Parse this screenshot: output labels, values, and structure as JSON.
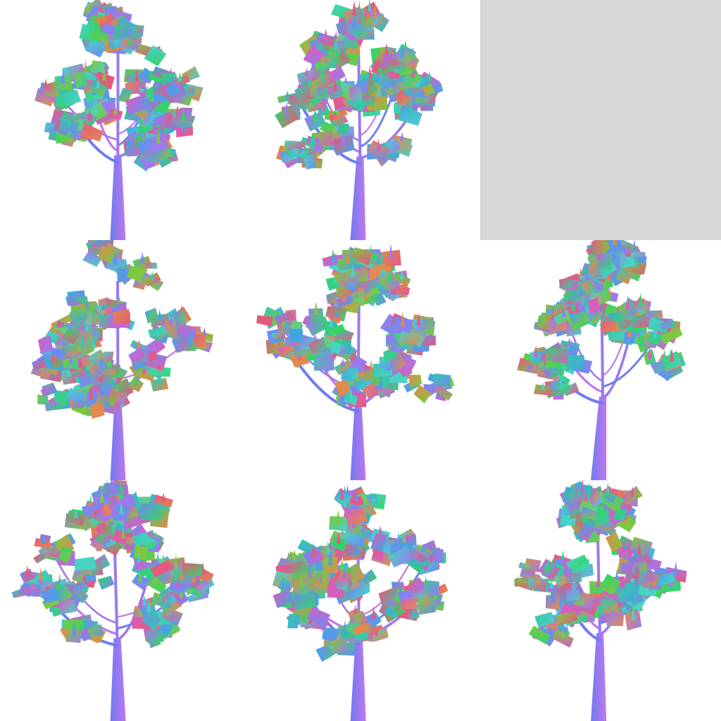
{
  "grid": {
    "rows": 3,
    "columns": 3,
    "background": "#ffffff",
    "empty_tile_color": "#d7d7d7"
  },
  "tiles": [
    {
      "kind": "tree",
      "seed": 11,
      "crown_spread": 1.0,
      "lean": 0.0
    },
    {
      "kind": "tree",
      "seed": 23,
      "crown_spread": 1.15,
      "lean": 0.05
    },
    {
      "kind": "empty"
    },
    {
      "kind": "tree",
      "seed": 37,
      "crown_spread": 1.2,
      "lean": 0.0
    },
    {
      "kind": "tree",
      "seed": 51,
      "crown_spread": 1.15,
      "lean": 0.0
    },
    {
      "kind": "tree",
      "seed": 67,
      "crown_spread": 1.05,
      "lean": 0.1
    },
    {
      "kind": "tree",
      "seed": 79,
      "crown_spread": 1.2,
      "lean": -0.02
    },
    {
      "kind": "tree",
      "seed": 89,
      "crown_spread": 1.1,
      "lean": 0.02
    },
    {
      "kind": "tree",
      "seed": 97,
      "crown_spread": 1.0,
      "lean": 0.03
    }
  ],
  "trunk_colors": [
    "#6f7cf0",
    "#9b79ef",
    "#c377ea"
  ],
  "leaf_palette": [
    "#35d36b",
    "#38c8a8",
    "#43a6e0",
    "#6f8bf1",
    "#9b7bec",
    "#d45fbf",
    "#e45a7f",
    "#e2894e",
    "#7cc83f",
    "#49d2c6"
  ]
}
